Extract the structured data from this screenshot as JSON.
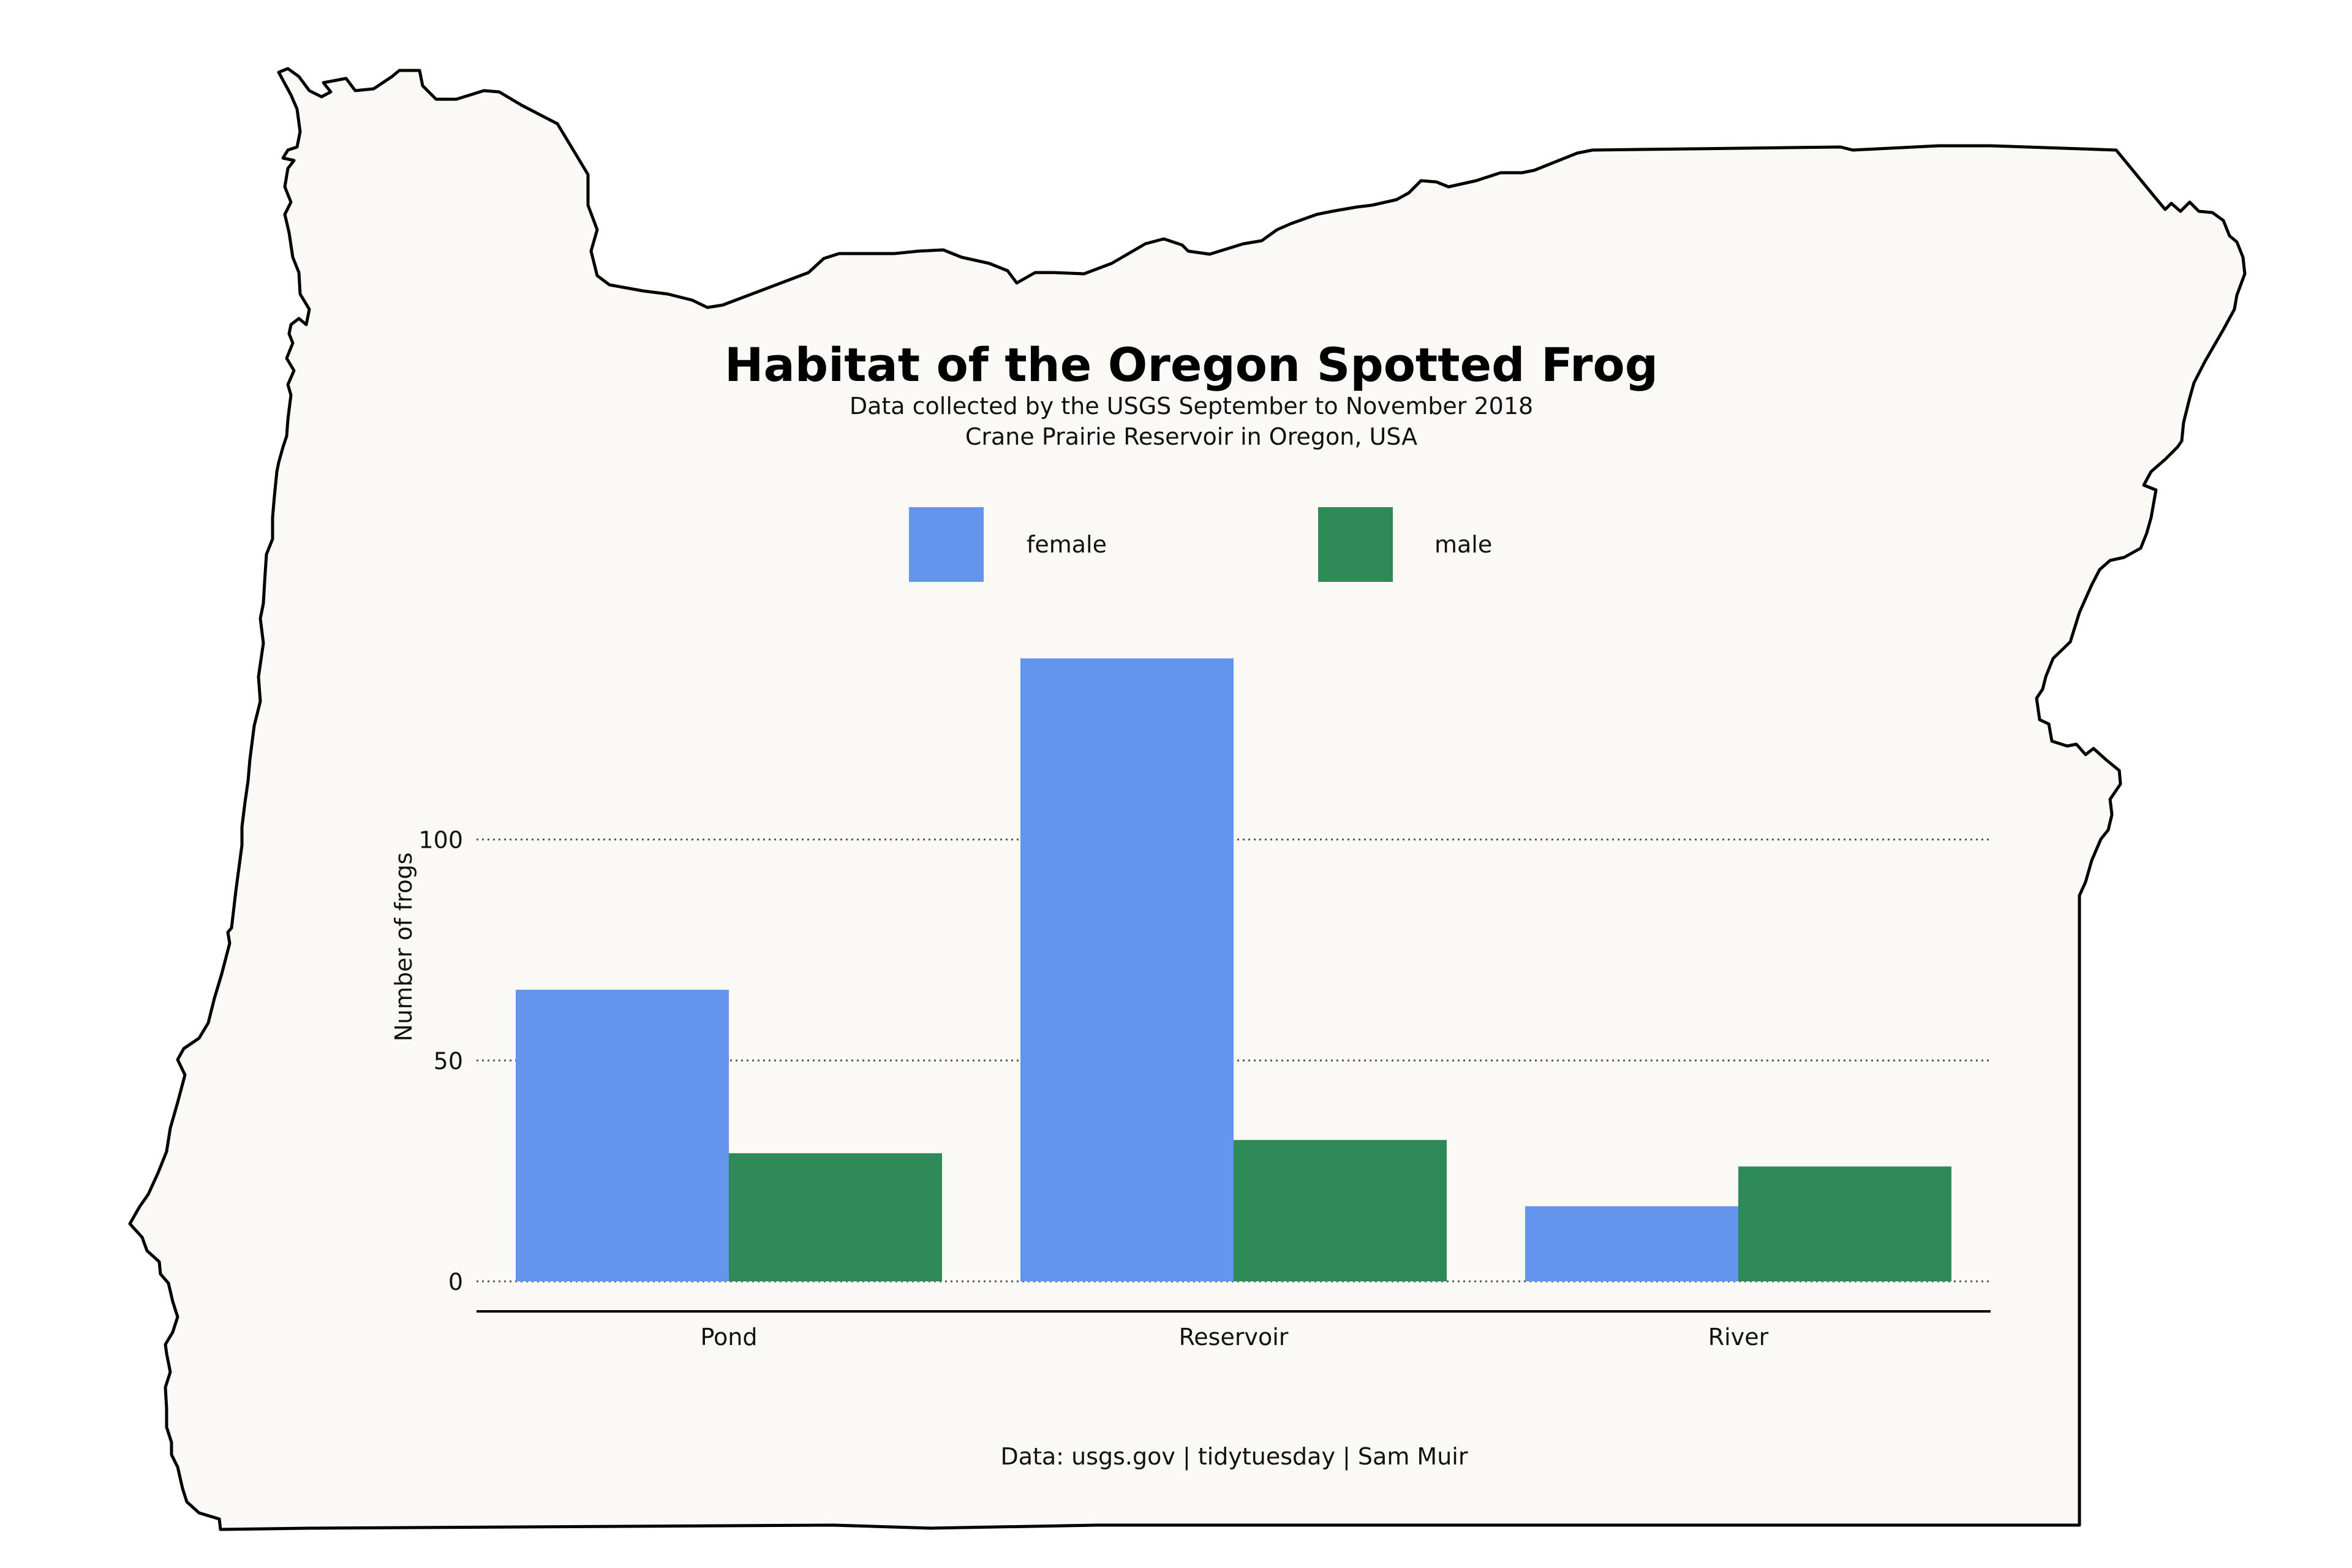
{
  "chart_data": {
    "type": "bar",
    "title": "Habitat of the Oregon Spotted Frog",
    "subtitle": [
      "Data collected by the USGS September to November 2018",
      "Crane Prairie Reservoir in Oregon, USA"
    ],
    "caption": "Data: usgs.gov | tidytuesday | Sam Muir",
    "xlabel": "",
    "ylabel": "Number of frogs",
    "categories": [
      "Pond",
      "Reservoir",
      "River"
    ],
    "series": [
      {
        "name": "female",
        "color": "#6495ED",
        "values": [
          66,
          141,
          17
        ]
      },
      {
        "name": "male",
        "color": "#2E8B57",
        "values": [
          29,
          32,
          26
        ]
      }
    ],
    "ylim": [
      0,
      150
    ],
    "yticks": [
      0,
      50,
      100
    ],
    "grid": "horizontal dotted",
    "legend_position": "top",
    "background_shape": "outline of the state of Oregon",
    "background_fill": "#FAF9F6",
    "outline_color": "#000000"
  }
}
